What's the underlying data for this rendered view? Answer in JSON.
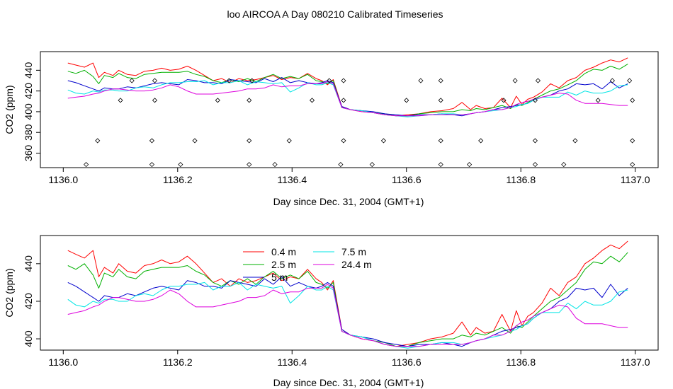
{
  "page": {
    "title": "loo AIRCOA A  Day 080210  Calibrated Timeseries"
  },
  "colors": {
    "0.4 m": "#ff0000",
    "2.5 m": "#00b000",
    "5 m": "#0000cc",
    "7.5 m": "#00e5e5",
    "24.4 m": "#dd00dd"
  },
  "chart_data": [
    {
      "type": "line",
      "panel": "top",
      "xlabel": "Day since Dec. 31, 2004 (GMT+1)",
      "ylabel": "CO2 (ppm)",
      "xlim": [
        1136.0,
        1137.0
      ],
      "ylim": [
        346,
        458
      ],
      "xticks": [
        1136.0,
        1136.2,
        1136.4,
        1136.6,
        1136.8,
        1137.0
      ],
      "xtick_labels": [
        "1136.0",
        "1136.2",
        "1136.4",
        "1136.6",
        "1136.8",
        "1137.0"
      ],
      "yticks": [
        360,
        380,
        400,
        420,
        440
      ],
      "ytick_labels": [
        "360",
        "380",
        "400",
        "420",
        "440"
      ],
      "legend": "none",
      "markers": {
        "name": "",
        "symbol": "diamond",
        "points": [
          [
            1136.04,
            349
          ],
          [
            1136.06,
            372
          ],
          [
            1136.1,
            411
          ],
          [
            1136.12,
            430
          ],
          [
            1136.155,
            349
          ],
          [
            1136.155,
            372
          ],
          [
            1136.16,
            411
          ],
          [
            1136.16,
            430
          ],
          [
            1136.205,
            349
          ],
          [
            1136.23,
            372
          ],
          [
            1136.27,
            411
          ],
          [
            1136.29,
            430
          ],
          [
            1136.325,
            349
          ],
          [
            1136.325,
            372
          ],
          [
            1136.325,
            411
          ],
          [
            1136.33,
            430
          ],
          [
            1136.37,
            349
          ],
          [
            1136.395,
            372
          ],
          [
            1136.435,
            411
          ],
          [
            1136.465,
            430
          ],
          [
            1136.485,
            349
          ],
          [
            1136.49,
            372
          ],
          [
            1136.49,
            411
          ],
          [
            1136.49,
            430
          ],
          [
            1136.54,
            349
          ],
          [
            1136.56,
            372
          ],
          [
            1136.6,
            411
          ],
          [
            1136.625,
            430
          ],
          [
            1136.66,
            349
          ],
          [
            1136.66,
            372
          ],
          [
            1136.66,
            411
          ],
          [
            1136.66,
            430
          ],
          [
            1136.71,
            349
          ],
          [
            1136.73,
            372
          ],
          [
            1136.77,
            411
          ],
          [
            1136.79,
            430
          ],
          [
            1136.825,
            349
          ],
          [
            1136.825,
            372
          ],
          [
            1136.825,
            411
          ],
          [
            1136.83,
            430
          ],
          [
            1136.875,
            349
          ],
          [
            1136.895,
            372
          ],
          [
            1136.935,
            411
          ],
          [
            1136.96,
            430
          ],
          [
            1136.995,
            349
          ],
          [
            1136.995,
            372
          ],
          [
            1136.995,
            411
          ],
          [
            1136.99,
            430
          ]
        ]
      },
      "series": [
        {
          "name": "0.4 m",
          "x": [
            1136.008,
            1136.022,
            1136.037,
            1136.052,
            1136.062,
            1136.072,
            1136.087,
            1136.097,
            1136.112,
            1136.127,
            1136.142,
            1136.157,
            1136.172,
            1136.187,
            1136.202,
            1136.217,
            1136.232,
            1136.247,
            1136.262,
            1136.277,
            1136.292,
            1136.307,
            1136.322,
            1136.337,
            1136.352,
            1136.367,
            1136.382,
            1136.397,
            1136.412,
            1136.427,
            1136.442,
            1136.452,
            1136.462,
            1136.472,
            1136.487,
            1136.502,
            1136.522,
            1136.542,
            1136.562,
            1136.582,
            1136.602,
            1136.622,
            1136.642,
            1136.662,
            1136.682,
            1136.697,
            1136.712,
            1136.722,
            1136.737,
            1136.752,
            1136.767,
            1136.782,
            1136.792,
            1136.802,
            1136.812,
            1136.822,
            1136.837,
            1136.852,
            1136.867,
            1136.882,
            1136.897,
            1136.912,
            1136.927,
            1136.942,
            1136.957,
            1136.972,
            1136.987
          ],
          "y": [
            447,
            445,
            443,
            447,
            433,
            438,
            435,
            440,
            436,
            435,
            439,
            440,
            442,
            440,
            441,
            444,
            440,
            435,
            430,
            432,
            428,
            432,
            430,
            431,
            433,
            435,
            431,
            433,
            432,
            437,
            432,
            430,
            426,
            431,
            405,
            402,
            400,
            399,
            397,
            396,
            397,
            398,
            400,
            401,
            403,
            409,
            402,
            406,
            403,
            404,
            413,
            404,
            415,
            407,
            412,
            414,
            419,
            427,
            423,
            430,
            433,
            440,
            443,
            447,
            450,
            448,
            452
          ]
        },
        {
          "name": "2.5 m",
          "x": [
            1136.008,
            1136.022,
            1136.037,
            1136.052,
            1136.062,
            1136.072,
            1136.087,
            1136.097,
            1136.112,
            1136.127,
            1136.142,
            1136.157,
            1136.172,
            1136.187,
            1136.202,
            1136.217,
            1136.232,
            1136.247,
            1136.262,
            1136.277,
            1136.292,
            1136.307,
            1136.322,
            1136.337,
            1136.352,
            1136.367,
            1136.382,
            1136.397,
            1136.412,
            1136.427,
            1136.442,
            1136.452,
            1136.462,
            1136.472,
            1136.487,
            1136.502,
            1136.522,
            1136.542,
            1136.562,
            1136.582,
            1136.602,
            1136.622,
            1136.642,
            1136.662,
            1136.682,
            1136.697,
            1136.712,
            1136.722,
            1136.737,
            1136.752,
            1136.767,
            1136.782,
            1136.792,
            1136.802,
            1136.812,
            1136.822,
            1136.837,
            1136.852,
            1136.867,
            1136.882,
            1136.897,
            1136.912,
            1136.927,
            1136.942,
            1136.957,
            1136.972,
            1136.987
          ],
          "y": [
            439,
            437,
            440,
            434,
            427,
            435,
            433,
            437,
            433,
            432,
            436,
            437,
            438,
            438,
            438,
            439,
            436,
            434,
            430,
            428,
            431,
            429,
            432,
            429,
            433,
            436,
            432,
            434,
            432,
            436,
            430,
            429,
            427,
            430,
            404,
            402,
            401,
            399,
            398,
            396,
            396,
            398,
            399,
            400,
            400,
            402,
            401,
            403,
            402,
            404,
            406,
            403,
            407,
            406,
            409,
            412,
            416,
            420,
            422,
            426,
            430,
            437,
            441,
            440,
            444,
            441,
            446
          ]
        },
        {
          "name": "5 m",
          "x": [
            1136.008,
            1136.022,
            1136.037,
            1136.052,
            1136.062,
            1136.072,
            1136.087,
            1136.097,
            1136.112,
            1136.127,
            1136.142,
            1136.157,
            1136.172,
            1136.187,
            1136.202,
            1136.217,
            1136.232,
            1136.247,
            1136.262,
            1136.277,
            1136.292,
            1136.307,
            1136.322,
            1136.337,
            1136.352,
            1136.367,
            1136.382,
            1136.397,
            1136.412,
            1136.427,
            1136.442,
            1136.452,
            1136.462,
            1136.472,
            1136.487,
            1136.502,
            1136.522,
            1136.542,
            1136.562,
            1136.582,
            1136.602,
            1136.622,
            1136.642,
            1136.662,
            1136.682,
            1136.697,
            1136.712,
            1136.722,
            1136.737,
            1136.752,
            1136.767,
            1136.782,
            1136.792,
            1136.802,
            1136.812,
            1136.822,
            1136.837,
            1136.852,
            1136.867,
            1136.882,
            1136.897,
            1136.912,
            1136.927,
            1136.942,
            1136.957,
            1136.972,
            1136.987
          ],
          "y": [
            430,
            428,
            425,
            422,
            420,
            423,
            422,
            422,
            424,
            423,
            425,
            427,
            428,
            427,
            426,
            431,
            430,
            428,
            428,
            427,
            431,
            430,
            429,
            428,
            432,
            429,
            433,
            428,
            430,
            428,
            427,
            428,
            430,
            428,
            405,
            402,
            401,
            400,
            398,
            397,
            396,
            397,
            397,
            398,
            397,
            396,
            398,
            399,
            400,
            402,
            404,
            405,
            406,
            407,
            408,
            411,
            414,
            416,
            420,
            422,
            427,
            426,
            427,
            422,
            429,
            423,
            427
          ]
        },
        {
          "name": "7.5 m",
          "x": [
            1136.008,
            1136.022,
            1136.037,
            1136.052,
            1136.062,
            1136.072,
            1136.087,
            1136.097,
            1136.112,
            1136.127,
            1136.142,
            1136.157,
            1136.172,
            1136.187,
            1136.202,
            1136.217,
            1136.232,
            1136.247,
            1136.262,
            1136.277,
            1136.292,
            1136.307,
            1136.322,
            1136.337,
            1136.352,
            1136.367,
            1136.382,
            1136.397,
            1136.412,
            1136.427,
            1136.442,
            1136.452,
            1136.462,
            1136.472,
            1136.487,
            1136.502,
            1136.522,
            1136.542,
            1136.562,
            1136.582,
            1136.602,
            1136.622,
            1136.642,
            1136.662,
            1136.682,
            1136.697,
            1136.712,
            1136.722,
            1136.737,
            1136.752,
            1136.767,
            1136.782,
            1136.792,
            1136.802,
            1136.812,
            1136.822,
            1136.837,
            1136.852,
            1136.867,
            1136.882,
            1136.897,
            1136.912,
            1136.927,
            1136.942,
            1136.957,
            1136.972,
            1136.987
          ],
          "y": [
            421,
            418,
            417,
            420,
            419,
            421,
            421,
            420,
            420,
            423,
            424,
            423,
            426,
            428,
            428,
            429,
            429,
            430,
            426,
            428,
            428,
            430,
            426,
            429,
            428,
            427,
            428,
            419,
            423,
            428,
            426,
            426,
            428,
            426,
            404,
            402,
            401,
            399,
            397,
            396,
            395,
            396,
            397,
            398,
            398,
            397,
            398,
            399,
            400,
            401,
            402,
            404,
            405,
            407,
            408,
            411,
            414,
            414,
            414,
            419,
            416,
            420,
            418,
            418,
            420,
            425,
            426
          ]
        },
        {
          "name": "24.4 m",
          "x": [
            1136.008,
            1136.022,
            1136.037,
            1136.052,
            1136.062,
            1136.072,
            1136.087,
            1136.097,
            1136.112,
            1136.127,
            1136.142,
            1136.157,
            1136.172,
            1136.187,
            1136.202,
            1136.217,
            1136.232,
            1136.247,
            1136.262,
            1136.277,
            1136.292,
            1136.307,
            1136.322,
            1136.337,
            1136.352,
            1136.367,
            1136.382,
            1136.397,
            1136.412,
            1136.427,
            1136.442,
            1136.452,
            1136.462,
            1136.472,
            1136.487,
            1136.502,
            1136.522,
            1136.542,
            1136.562,
            1136.582,
            1136.602,
            1136.622,
            1136.642,
            1136.662,
            1136.682,
            1136.697,
            1136.712,
            1136.722,
            1136.737,
            1136.752,
            1136.767,
            1136.782,
            1136.792,
            1136.802,
            1136.812,
            1136.822,
            1136.837,
            1136.852,
            1136.867,
            1136.882,
            1136.897,
            1136.912,
            1136.927,
            1136.942,
            1136.957,
            1136.972,
            1136.987
          ],
          "y": [
            413,
            414,
            415,
            417,
            418,
            420,
            422,
            422,
            421,
            420,
            420,
            421,
            423,
            426,
            424,
            420,
            417,
            417,
            417,
            418,
            419,
            420,
            422,
            422,
            423,
            426,
            424,
            425,
            425,
            427,
            427,
            427,
            429,
            427,
            404,
            402,
            400,
            399,
            397,
            396,
            396,
            396,
            397,
            397,
            397,
            397,
            398,
            399,
            400,
            402,
            402,
            404,
            407,
            409,
            410,
            412,
            414,
            416,
            418,
            417,
            411,
            408,
            408,
            408,
            407,
            406,
            406
          ]
        }
      ]
    },
    {
      "type": "line",
      "panel": "bottom",
      "xlabel": "Day since Dec. 31, 2004 (GMT+1)",
      "ylabel": "CO2 (ppm)",
      "xlim": [
        1136.0,
        1137.0
      ],
      "ylim": [
        394,
        455
      ],
      "xticks": [
        1136.0,
        1136.2,
        1136.4,
        1136.6,
        1136.8,
        1137.0
      ],
      "xtick_labels": [
        "1136.0",
        "1136.2",
        "1136.4",
        "1136.6",
        "1136.8",
        "1137.0"
      ],
      "yticks": [
        400,
        420,
        440
      ],
      "ytick_labels": [
        "400",
        "420",
        "440"
      ],
      "legend": "top-center",
      "legend_entries": [
        "0.4 m",
        "2.5 m",
        "5 m",
        "7.5 m",
        "24.4 m"
      ],
      "series_same_as": "top"
    }
  ]
}
